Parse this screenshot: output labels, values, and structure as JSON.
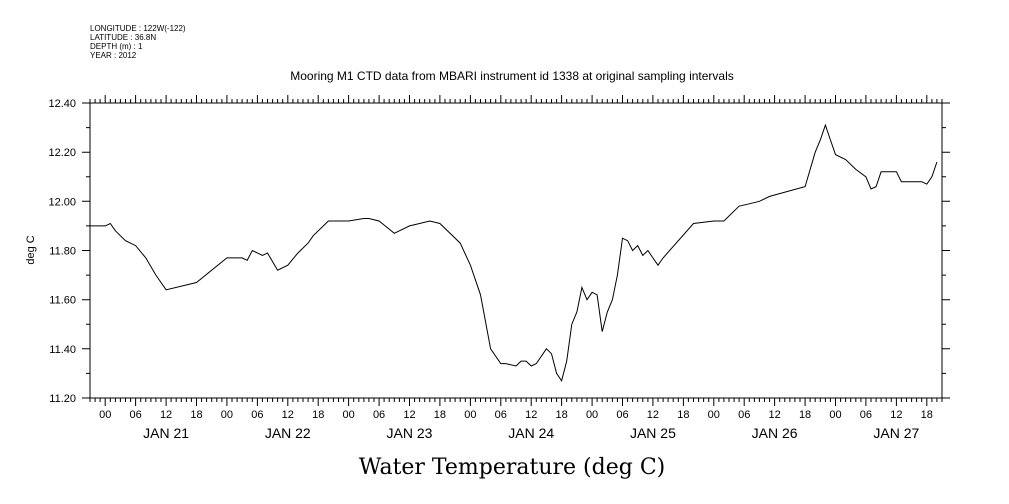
{
  "meta": {
    "longitude": "LONGITUDE : 122W(-122)",
    "latitude": "LATITUDE : 36.8N",
    "depth": "DEPTH (m) : 1",
    "year": "YEAR : 2012"
  },
  "chart_data": {
    "type": "line",
    "title": "Mooring M1 CTD data from MBARI instrument id 1338 at original sampling intervals",
    "xlabel": "Water Temperature (deg C)",
    "ylabel": "deg C",
    "ylim": [
      11.2,
      12.4
    ],
    "yticks": [
      "11.20",
      "11.40",
      "11.60",
      "11.80",
      "12.00",
      "12.20",
      "12.40"
    ],
    "xlim": [
      "2012-01-20T21:00",
      "2012-01-27T21:00"
    ],
    "hour_labels": [
      "00",
      "06",
      "12",
      "18",
      "00",
      "06",
      "12",
      "18",
      "00",
      "06",
      "12",
      "18",
      "00",
      "06",
      "12",
      "18",
      "00",
      "06",
      "12",
      "18",
      "00",
      "06",
      "12",
      "18",
      "00",
      "06",
      "12",
      "18"
    ],
    "day_labels": [
      "JAN 21",
      "JAN 22",
      "JAN 23",
      "JAN 24",
      "JAN 25",
      "JAN 26",
      "JAN 27"
    ],
    "grid": false,
    "series": [
      {
        "x": [
          "2012-01-20T21:00",
          "2012-01-21T00:00",
          "2012-01-21T01:00",
          "2012-01-21T02:00",
          "2012-01-21T04:00",
          "2012-01-21T06:00",
          "2012-01-21T08:00",
          "2012-01-21T10:00",
          "2012-01-21T12:00",
          "2012-01-21T18:00",
          "2012-01-22T00:00",
          "2012-01-22T03:00",
          "2012-01-22T04:00",
          "2012-01-22T05:00",
          "2012-01-22T07:00",
          "2012-01-22T08:00",
          "2012-01-22T10:00",
          "2012-01-22T12:00",
          "2012-01-22T14:00",
          "2012-01-22T16:00",
          "2012-01-22T17:00",
          "2012-01-22T20:00",
          "2012-01-23T00:00",
          "2012-01-23T03:00",
          "2012-01-23T04:00",
          "2012-01-23T06:00",
          "2012-01-23T09:00",
          "2012-01-23T12:00",
          "2012-01-23T14:00",
          "2012-01-23T16:00",
          "2012-01-23T18:00",
          "2012-01-23T22:00",
          "2012-01-24T00:00",
          "2012-01-24T02:00",
          "2012-01-24T04:00",
          "2012-01-24T06:00",
          "2012-01-24T07:00",
          "2012-01-24T09:00",
          "2012-01-24T10:00",
          "2012-01-24T11:00",
          "2012-01-24T12:00",
          "2012-01-24T13:00",
          "2012-01-24T15:00",
          "2012-01-24T16:00",
          "2012-01-24T17:00",
          "2012-01-24T18:00",
          "2012-01-24T19:00",
          "2012-01-24T20:00",
          "2012-01-24T21:00",
          "2012-01-24T22:00",
          "2012-01-24T23:00",
          "2012-01-25T00:00",
          "2012-01-25T01:00",
          "2012-01-25T02:00",
          "2012-01-25T03:00",
          "2012-01-25T04:00",
          "2012-01-25T05:00",
          "2012-01-25T06:00",
          "2012-01-25T07:00",
          "2012-01-25T08:00",
          "2012-01-25T09:00",
          "2012-01-25T10:00",
          "2012-01-25T11:00",
          "2012-01-25T12:00",
          "2012-01-25T13:00",
          "2012-01-25T14:00",
          "2012-01-25T20:00",
          "2012-01-26T00:00",
          "2012-01-26T02:00",
          "2012-01-26T05:00",
          "2012-01-26T07:00",
          "2012-01-26T09:00",
          "2012-01-26T11:00",
          "2012-01-26T18:00",
          "2012-01-26T20:00",
          "2012-01-26T21:00",
          "2012-01-26T22:00",
          "2012-01-26T23:00",
          "2012-01-27T00:00",
          "2012-01-27T02:00",
          "2012-01-27T04:00",
          "2012-01-27T06:00",
          "2012-01-27T07:00",
          "2012-01-27T08:00",
          "2012-01-27T09:00",
          "2012-01-27T12:00",
          "2012-01-27T13:00",
          "2012-01-27T15:00",
          "2012-01-27T17:00",
          "2012-01-27T18:00",
          "2012-01-27T19:00",
          "2012-01-27T20:00"
        ],
        "values": [
          11.9,
          11.9,
          11.91,
          11.88,
          11.84,
          11.82,
          11.77,
          11.7,
          11.64,
          11.67,
          11.77,
          11.77,
          11.76,
          11.8,
          11.78,
          11.79,
          11.72,
          11.74,
          11.79,
          11.83,
          11.86,
          11.92,
          11.92,
          11.93,
          11.93,
          11.92,
          11.87,
          11.9,
          11.91,
          11.92,
          11.91,
          11.83,
          11.74,
          11.62,
          11.4,
          11.34,
          11.34,
          11.33,
          11.35,
          11.35,
          11.33,
          11.34,
          11.4,
          11.38,
          11.3,
          11.27,
          11.35,
          11.5,
          11.55,
          11.65,
          11.6,
          11.63,
          11.62,
          11.47,
          11.55,
          11.6,
          11.7,
          11.85,
          11.84,
          11.8,
          11.82,
          11.78,
          11.8,
          11.77,
          11.74,
          11.77,
          11.91,
          11.92,
          11.92,
          11.98,
          11.99,
          12.0,
          12.02,
          12.06,
          12.2,
          12.25,
          12.31,
          12.25,
          12.19,
          12.17,
          12.13,
          12.1,
          12.05,
          12.06,
          12.12,
          12.12,
          12.08,
          12.08,
          12.08,
          12.07,
          12.1,
          12.16
        ]
      }
    ]
  }
}
